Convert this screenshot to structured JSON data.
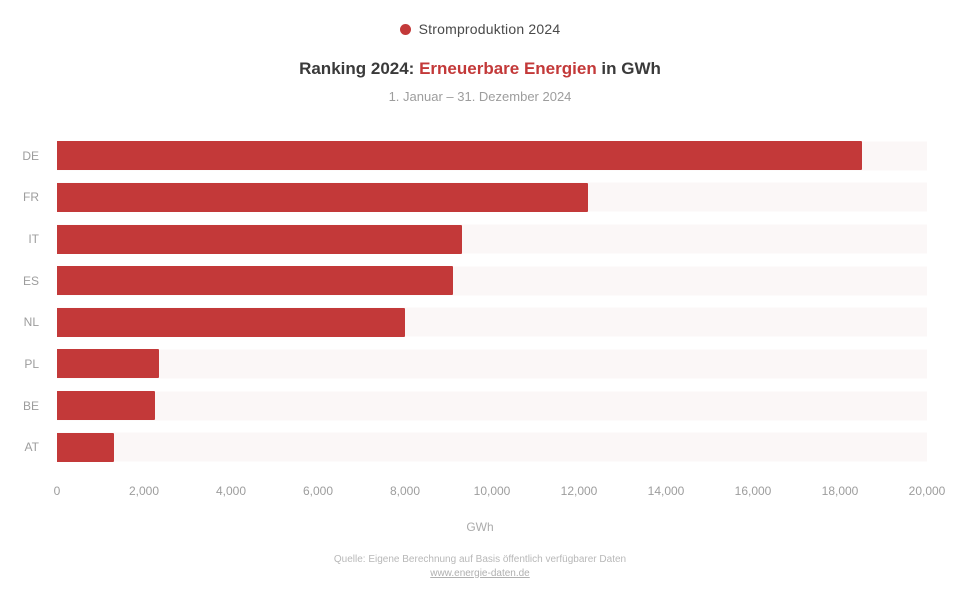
{
  "accent_color": "#c33939",
  "legend": {
    "swatch_color": "#c33939",
    "label": "Stromproduktion 2024"
  },
  "title": {
    "pre": "Ranking 2024: ",
    "highlight": "Erneuerbare Energien",
    "post": " in GWh",
    "highlight_color": "#c33939"
  },
  "subtitle": "1. Januar – 31. Dezember 2024",
  "chart_data": {
    "type": "bar",
    "orientation": "horizontal",
    "title": "Ranking 2024: Erneuerbare Energien in GWh",
    "subtitle": "1. Januar – 31. Dezember 2024",
    "categories": [
      "DE",
      "FR",
      "IT",
      "ES",
      "NL",
      "PL",
      "BE",
      "AT"
    ],
    "values": [
      18500,
      12200,
      9300,
      9100,
      8000,
      2350,
      2250,
      1300
    ],
    "bar_color": "#c33939",
    "xlim": [
      0,
      20000
    ],
    "xticks": [
      0,
      2000,
      4000,
      6000,
      8000,
      10000,
      12000,
      14000,
      16000,
      18000,
      20000
    ],
    "xtick_labels": [
      "0",
      "2,000",
      "4,000",
      "6,000",
      "8,000",
      "10,000",
      "12,000",
      "14,000",
      "16,000",
      "18,000",
      "20,000"
    ],
    "xlabel": "GWh",
    "ylabel": "",
    "grid": false,
    "legend_position": "top",
    "legend_entries": [
      "Stromproduktion 2024"
    ]
  },
  "footer": {
    "line1": "Quelle: Eigene Berechnung auf Basis öffentlich verfügbarer Daten",
    "link": "www.energie-daten.de"
  }
}
